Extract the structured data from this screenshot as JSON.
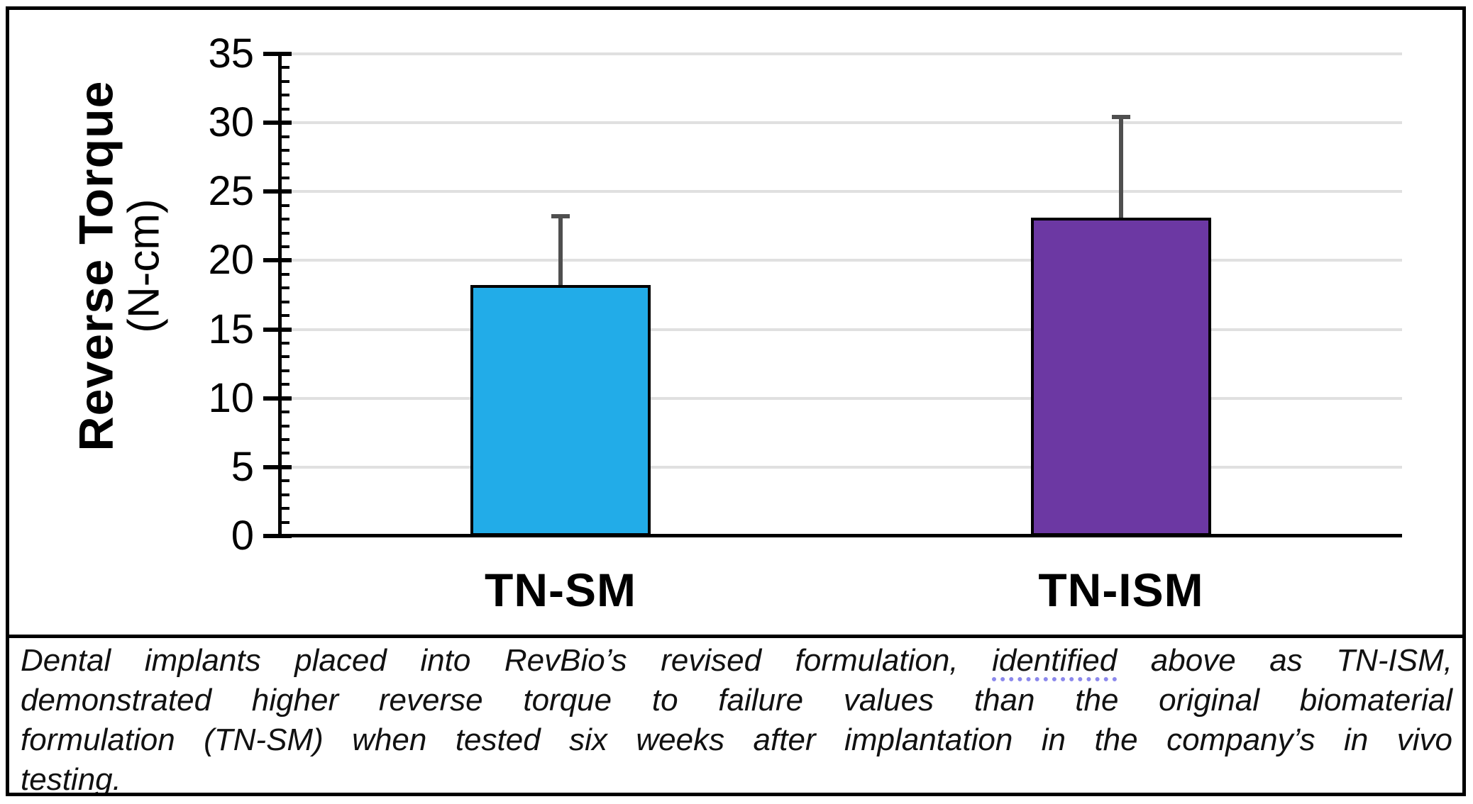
{
  "chart_data": {
    "type": "bar",
    "title": "",
    "categories": [
      "TN-SM",
      "TN-ISM"
    ],
    "values": [
      18.2,
      23.1
    ],
    "error_plus": [
      5.0,
      7.3
    ],
    "ylabel_line1": "Reverse Torque",
    "ylabel_line2": "(N-cm)",
    "ylim": [
      0,
      35
    ],
    "ytick_major_step": 5,
    "ytick_minor_step": 1,
    "yticks": [
      "0",
      "5",
      "10",
      "15",
      "20",
      "25",
      "30",
      "35"
    ],
    "grid": "horizontal-major",
    "legend": "none",
    "colors": {
      "bars": [
        "#22ACE8",
        "#6C38A3"
      ],
      "bar_border": "#000000",
      "error_bar": "#4F4F4F",
      "gridline": "#E0E0E0",
      "axis": "#000000"
    }
  },
  "caption": {
    "underline_color": "#8B88EC",
    "lines": [
      {
        "before": "Dental implants placed into RevBio’s revised formulation, ",
        "underlined": "identified",
        "after": " above as TN-ISM,"
      },
      {
        "text": "demonstrated higher reverse torque to failure values than the original biomaterial"
      },
      {
        "text": "formulation (TN-SM) when tested six weeks after implantation in the company’s in vivo"
      },
      {
        "text": "testing."
      }
    ]
  }
}
